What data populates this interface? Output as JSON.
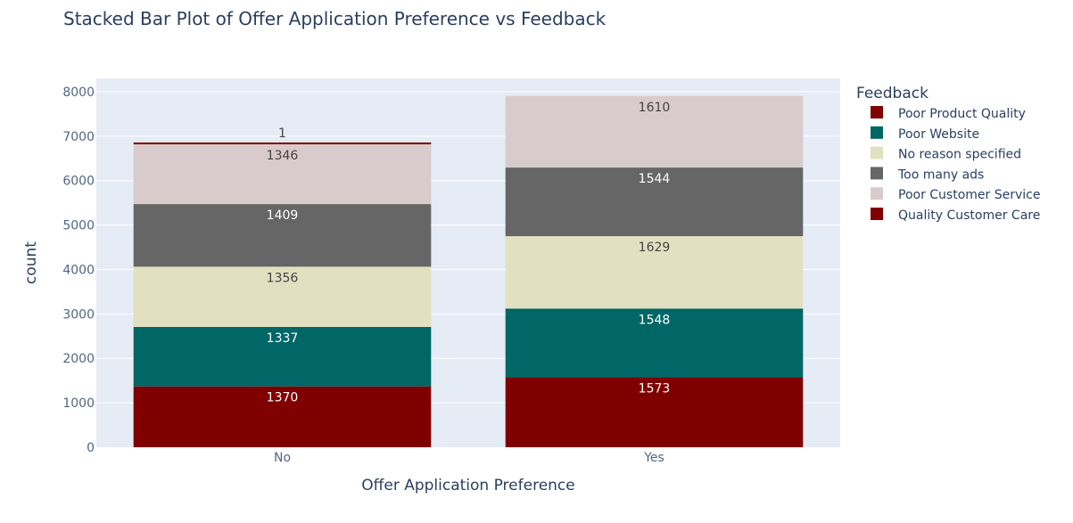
{
  "chart_data": {
    "type": "bar",
    "stacked": true,
    "title": "Stacked Bar Plot of Offer Application Preference vs Feedback",
    "xlabel": "Offer Application Preference",
    "ylabel": "count",
    "categories": [
      "No",
      "Yes"
    ],
    "ylim": [
      0,
      8300
    ],
    "yticks": [
      0,
      1000,
      2000,
      3000,
      4000,
      5000,
      6000,
      7000,
      8000
    ],
    "grid": true,
    "legend_title": "Feedback",
    "legend_position": "right",
    "series": [
      {
        "name": "Quality Customer Care",
        "values": [
          1370,
          1573
        ],
        "color": "#800000",
        "label_color": "#ffffff"
      },
      {
        "name": "Poor Website",
        "values": [
          1337,
          1548
        ],
        "color": "#006666",
        "label_color": "#ffffff"
      },
      {
        "name": "No reason specified",
        "values": [
          1356,
          1629
        ],
        "color": "#e1e1c1",
        "label_color": "#444444"
      },
      {
        "name": "Too many ads",
        "values": [
          1409,
          1544
        ],
        "color": "#666666",
        "label_color": "#ffffff"
      },
      {
        "name": "Poor Customer Service",
        "values": [
          1346,
          1610
        ],
        "color": "#d8cbcb",
        "label_color": "#444444"
      },
      {
        "name": "Poor Product Quality",
        "values": [
          1,
          0
        ],
        "color": "#800000",
        "label_color": "#444444"
      }
    ],
    "legend_order": [
      "Poor Product Quality",
      "Poor Website",
      "No reason specified",
      "Too many ads",
      "Poor Customer Service",
      "Quality Customer Care"
    ]
  },
  "colors": {
    "plot_bg": "#e5ecf6",
    "grid": "#ffffff",
    "text": "#2a3f5f",
    "tick_text": "#506784"
  }
}
